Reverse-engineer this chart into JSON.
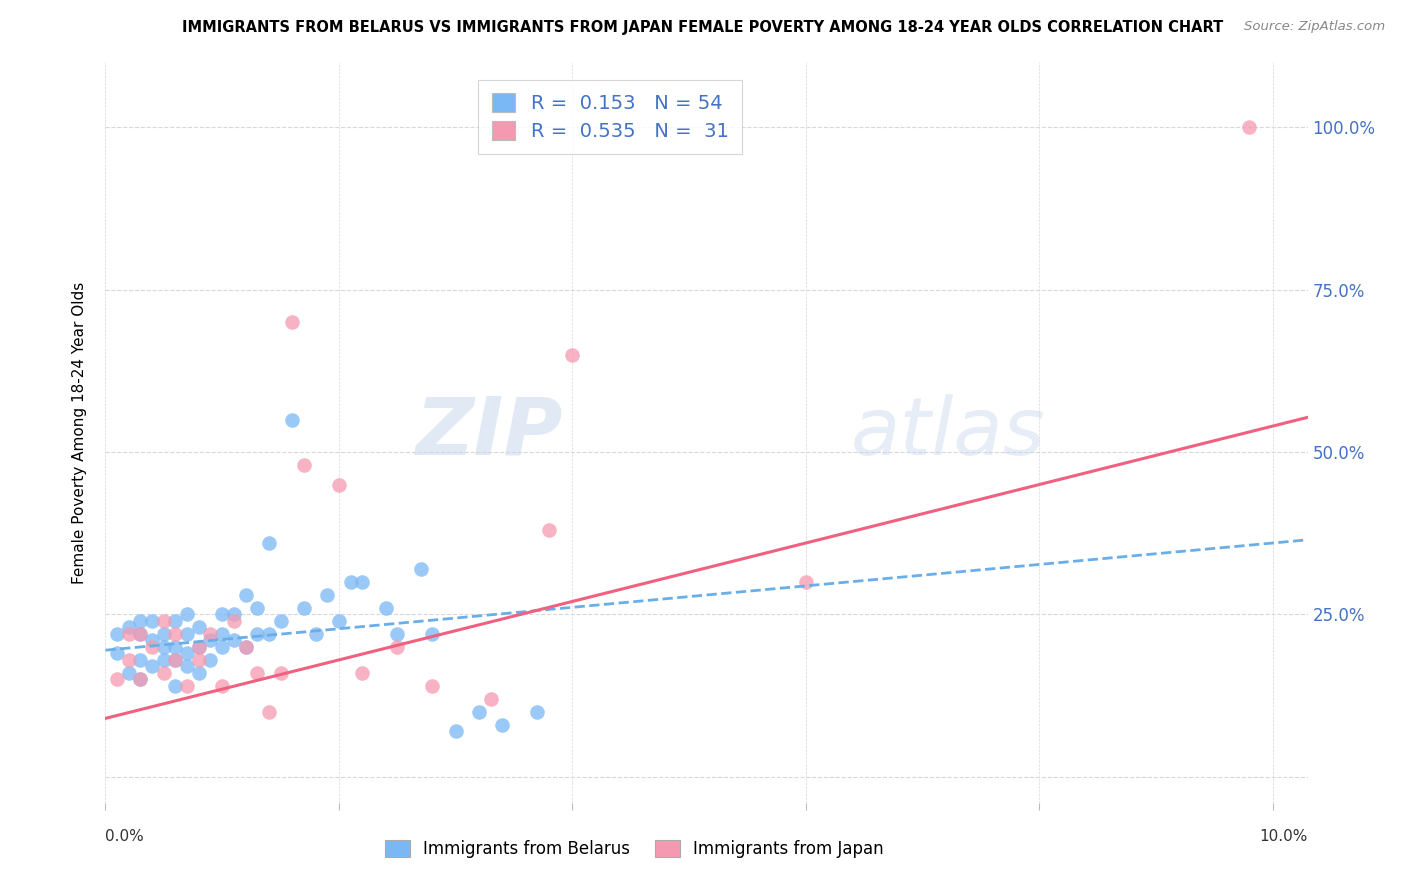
{
  "title": "IMMIGRANTS FROM BELARUS VS IMMIGRANTS FROM JAPAN FEMALE POVERTY AMONG 18-24 YEAR OLDS CORRELATION CHART",
  "source": "Source: ZipAtlas.com",
  "ylabel": "Female Poverty Among 18-24 Year Olds",
  "xlim": [
    0.0,
    0.103
  ],
  "ylim": [
    -0.04,
    1.1
  ],
  "ytick_vals": [
    0.0,
    0.25,
    0.5,
    0.75,
    1.0
  ],
  "ytick_labels": [
    "",
    "25.0%",
    "50.0%",
    "75.0%",
    "100.0%"
  ],
  "xtick_vals": [
    0.0,
    0.02,
    0.04,
    0.06,
    0.08,
    0.1
  ],
  "xtick_label_left": "0.0%",
  "xtick_label_right": "10.0%",
  "belarus_color": "#7ab8f5",
  "japan_color": "#f599b0",
  "line_blue": "#6aaee8",
  "line_pink": "#f06080",
  "belarus_R": 0.153,
  "belarus_N": 54,
  "japan_R": 0.535,
  "japan_N": 31,
  "belarus_x": [
    0.001,
    0.001,
    0.002,
    0.002,
    0.003,
    0.003,
    0.003,
    0.003,
    0.004,
    0.004,
    0.004,
    0.005,
    0.005,
    0.005,
    0.006,
    0.006,
    0.006,
    0.006,
    0.007,
    0.007,
    0.007,
    0.007,
    0.008,
    0.008,
    0.008,
    0.009,
    0.009,
    0.01,
    0.01,
    0.01,
    0.011,
    0.011,
    0.012,
    0.012,
    0.013,
    0.013,
    0.014,
    0.014,
    0.015,
    0.016,
    0.017,
    0.018,
    0.019,
    0.02,
    0.021,
    0.022,
    0.024,
    0.025,
    0.027,
    0.028,
    0.03,
    0.032,
    0.034,
    0.037
  ],
  "belarus_y": [
    0.19,
    0.22,
    0.16,
    0.23,
    0.15,
    0.18,
    0.22,
    0.24,
    0.17,
    0.21,
    0.24,
    0.18,
    0.2,
    0.22,
    0.14,
    0.18,
    0.2,
    0.24,
    0.17,
    0.19,
    0.22,
    0.25,
    0.16,
    0.2,
    0.23,
    0.18,
    0.21,
    0.2,
    0.22,
    0.25,
    0.21,
    0.25,
    0.2,
    0.28,
    0.22,
    0.26,
    0.22,
    0.36,
    0.24,
    0.55,
    0.26,
    0.22,
    0.28,
    0.24,
    0.3,
    0.3,
    0.26,
    0.22,
    0.32,
    0.22,
    0.07,
    0.1,
    0.08,
    0.1
  ],
  "japan_x": [
    0.001,
    0.002,
    0.002,
    0.003,
    0.003,
    0.004,
    0.005,
    0.005,
    0.006,
    0.006,
    0.007,
    0.008,
    0.008,
    0.009,
    0.01,
    0.011,
    0.012,
    0.013,
    0.014,
    0.015,
    0.016,
    0.017,
    0.02,
    0.022,
    0.025,
    0.028,
    0.033,
    0.038,
    0.04,
    0.06,
    0.098
  ],
  "japan_y": [
    0.15,
    0.18,
    0.22,
    0.15,
    0.22,
    0.2,
    0.16,
    0.24,
    0.18,
    0.22,
    0.14,
    0.18,
    0.2,
    0.22,
    0.14,
    0.24,
    0.2,
    0.16,
    0.1,
    0.16,
    0.7,
    0.48,
    0.45,
    0.16,
    0.2,
    0.14,
    0.12,
    0.38,
    0.65,
    0.3,
    1.0
  ],
  "watermark_zip": "ZIP",
  "watermark_atlas": "atlas",
  "bg_color": "#ffffff",
  "grid_color": "#d8d8d8",
  "right_tick_color": "#4472c4",
  "legend_color": "#4472c4"
}
